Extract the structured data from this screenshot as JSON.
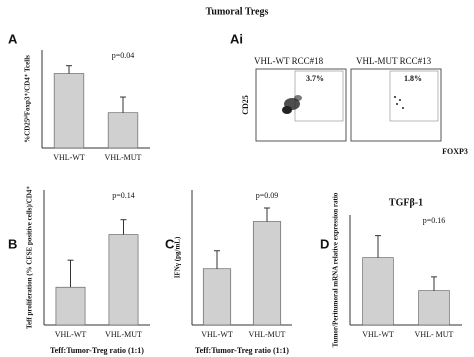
{
  "title": "Tumoral Tregs",
  "flow": {
    "panel": "Ai",
    "y_label": "CD25",
    "x_label": "FOXP3",
    "plots": [
      {
        "title": "VHL-WT RCC#18",
        "percent": "3.7%"
      },
      {
        "title": "VHL-MUT RCC#13",
        "percent": "1.8%"
      }
    ]
  },
  "chart_data": [
    {
      "type": "bar",
      "panel": "A",
      "ylabel": "%CD25ʰⁱFoxp3⁺/CD4⁺ Tcells",
      "annotation": "p=0.04",
      "categories": [
        "VHL-WT",
        "VHL-MUT"
      ],
      "values": [
        3.8,
        1.8
      ],
      "errors": [
        0.4,
        0.8
      ],
      "color": "#d0d0d0",
      "ylim": [
        0,
        5
      ]
    },
    {
      "type": "bar",
      "panel": "B",
      "ylabel": "Teff proliferation (% CFSE positive cells)/CD4⁺",
      "xlabel": "Teff:Tumor-Treg ratio (1:1)",
      "annotation": "p=0.14",
      "categories": [
        "VHL-WT",
        "VHL-MUT"
      ],
      "values": [
        2.8,
        6.7
      ],
      "errors": [
        2.0,
        1.1
      ],
      "color": "#d0d0d0",
      "ylim": [
        0,
        10
      ]
    },
    {
      "type": "bar",
      "panel": "C",
      "ylabel": "IFNγ (pg/mL)",
      "xlabel": "Teff:Tumor-Treg ratio (1:1)",
      "annotation": "p=0.09",
      "categories": [
        "VHL-WT",
        "VHL-MUT"
      ],
      "values": [
        12.5,
        23
      ],
      "errors": [
        4,
        3
      ],
      "color": "#d0d0d0",
      "ylim": [
        0,
        30
      ]
    },
    {
      "type": "bar",
      "panel": "D",
      "title": "TGFβ-1",
      "ylabel": "Tumor/Peritumoral mRNA relative expression ratio",
      "annotation": "p=0.16",
      "categories": [
        "VHL-WT",
        "VHL- MUT"
      ],
      "values": [
        4.9,
        2.5
      ],
      "errors": [
        1.6,
        1.0
      ],
      "color": "#d0d0d0",
      "ylim": [
        0,
        8
      ]
    }
  ]
}
